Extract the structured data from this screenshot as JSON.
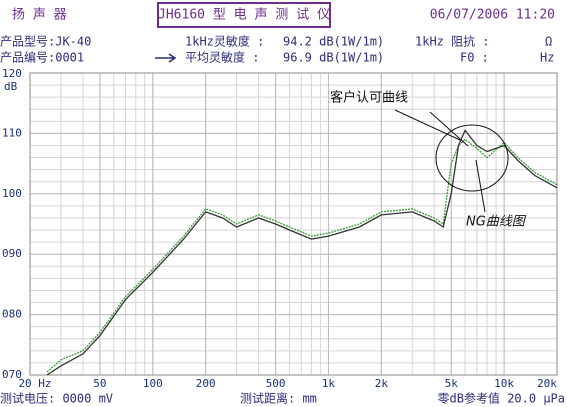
{
  "header": {
    "device": "扬 声 器",
    "model_box": "JH6160 型 电 声 测 试 仪",
    "datetime": "06/07/2006 11:20",
    "product_model": "产品型号:JK-40",
    "product_no": "产品编号:0001",
    "sens_1k_label": "1kHz灵敏度 :",
    "sens_1k_value": "94.2 dB(1W/1m)",
    "avg_sens_label": "平均灵敏度 :",
    "avg_sens_value": "96.9 dB(1W/1m)",
    "impedance_label": "1kHz 阻抗 :",
    "impedance_unit": "Ω",
    "f0_label": "F0 :",
    "f0_unit": "Hz"
  },
  "footer": {
    "voltage": "测试电压: 0000 mV",
    "distance": "测试距离:    mm",
    "reference": "零dB参考值 20.0 μPa"
  },
  "chart_data": {
    "type": "line",
    "y_label": "dB",
    "log_x": true,
    "grid": true,
    "annotations": [
      "客户认可曲线",
      "NG曲线图"
    ],
    "xlim": [
      20,
      20000
    ],
    "ylim": [
      70,
      120
    ],
    "xticks": [
      {
        "value": 20,
        "label": "20 Hz"
      },
      50,
      100,
      200,
      500,
      {
        "value": 1000,
        "label": "1k"
      },
      {
        "value": 2000,
        "label": "2k"
      },
      {
        "value": 5000,
        "label": "5k"
      },
      {
        "value": 10000,
        "label": "10k"
      },
      {
        "value": 20000,
        "label": "20k"
      }
    ],
    "yticks": [
      {
        "value": 70,
        "label": "070"
      },
      {
        "value": 80,
        "label": "080"
      },
      {
        "value": 90,
        "label": "090"
      },
      100,
      110,
      120
    ],
    "x": [
      25,
      30,
      40,
      50,
      70,
      100,
      150,
      200,
      250,
      300,
      400,
      500,
      600,
      800,
      1000,
      1500,
      2000,
      3000,
      4000,
      4500,
      5000,
      5500,
      6000,
      7000,
      8000,
      10000,
      12000,
      15000,
      20000
    ],
    "series": [
      {
        "name": "客户认可曲线",
        "color": "#3a9a3a",
        "values": [
          70.5,
          72.5,
          74,
          77,
          83,
          87.5,
          93,
          97.5,
          96.5,
          95,
          96.5,
          95.5,
          94.5,
          93,
          93.5,
          95,
          97,
          97.5,
          96,
          95,
          105,
          108,
          109,
          107.5,
          106,
          108.5,
          106,
          103.5,
          101.5
        ]
      },
      {
        "name": "NG曲线图",
        "color": "#333333",
        "values": [
          70,
          71.5,
          73.5,
          76.5,
          82.5,
          87,
          92.5,
          97,
          96,
          94.5,
          96,
          95,
          94,
          92.5,
          93,
          94.5,
          96.5,
          97,
          95.5,
          94.5,
          100,
          108,
          110.5,
          108,
          107,
          108,
          105.5,
          103,
          101
        ]
      }
    ]
  }
}
